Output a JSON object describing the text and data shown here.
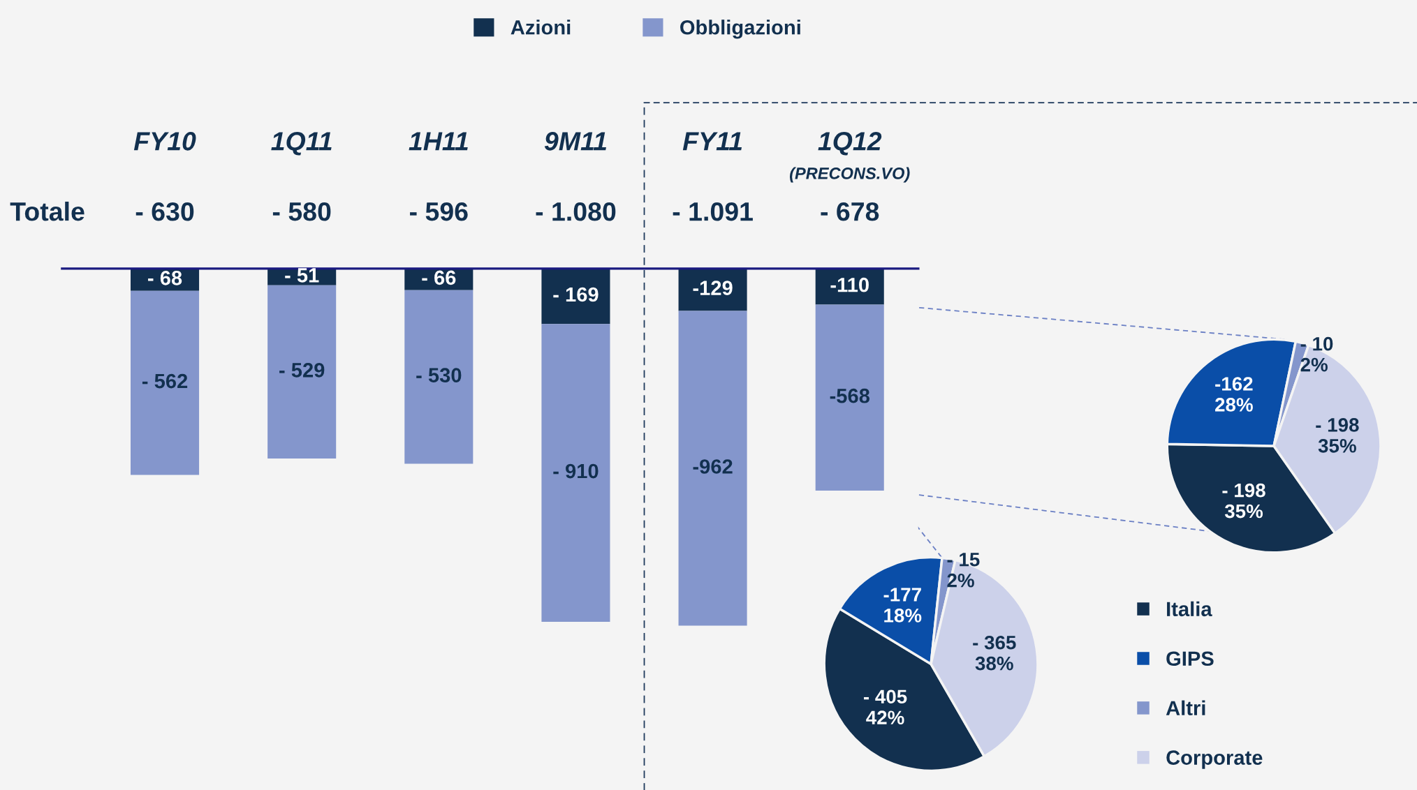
{
  "chart_data": [
    {
      "type": "bar",
      "stacked": true,
      "categories": [
        "FY10",
        "1Q11",
        "1H11",
        "9M11",
        "FY11",
        "1Q12\n(PRECONS.VO)"
      ],
      "series": [
        {
          "name": "Azioni",
          "color": "#12304f",
          "values": [
            -68,
            -51,
            -66,
            -169,
            -129,
            -110
          ],
          "value_labels": [
            "- 68",
            "- 51",
            "- 66",
            "- 169",
            "-129",
            "-110"
          ]
        },
        {
          "name": "Obbligazioni",
          "color": "#8496cc",
          "values": [
            -562,
            -529,
            -530,
            -910,
            -962,
            -568
          ],
          "value_labels": [
            "- 562",
            "- 529",
            "- 530",
            "- 910",
            "-962",
            "-568"
          ]
        }
      ],
      "totals": [
        "- 630",
        "- 580",
        "- 596",
        "- 1.080",
        "- 1.091",
        "- 678"
      ],
      "annotations": [
        "Totale"
      ],
      "legend": "top"
    },
    {
      "type": "pie",
      "categories": [
        "Italia",
        "GIPS",
        "Altri",
        "Corporate"
      ],
      "values": [
        42,
        18,
        2,
        38
      ],
      "colors": [
        "#12304f",
        "#0a4ea8",
        "#8496cc",
        "#ccd1ea"
      ],
      "value_labels": [
        "- 405\n42%",
        "-177\n18%",
        "- 15\n2%",
        "- 365\n38%"
      ],
      "legend": "right"
    },
    {
      "type": "pie",
      "categories": [
        null,
        null,
        null,
        null
      ],
      "values": [
        35,
        28,
        2,
        35
      ],
      "colors": [
        "#12304f",
        "#0a4ea8",
        "#8496cc",
        "#ccd1ea"
      ],
      "value_labels": [
        "- 198\n35%",
        "-162\n28%",
        "- 10\n2%",
        "- 198\n35%"
      ]
    }
  ]
}
